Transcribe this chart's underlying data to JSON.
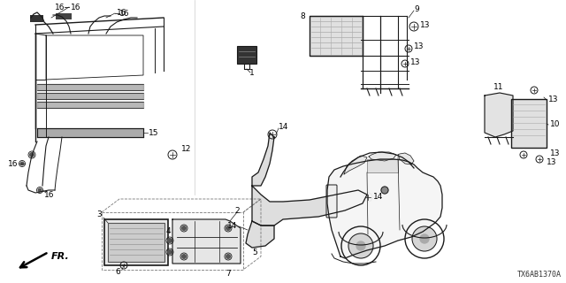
{
  "bg_color": "#ffffff",
  "diagram_code": "TX6AB1370A",
  "line_color": "#1a1a1a",
  "text_color": "#000000",
  "label_fontsize": 6.5,
  "note_fontsize": 5.5
}
